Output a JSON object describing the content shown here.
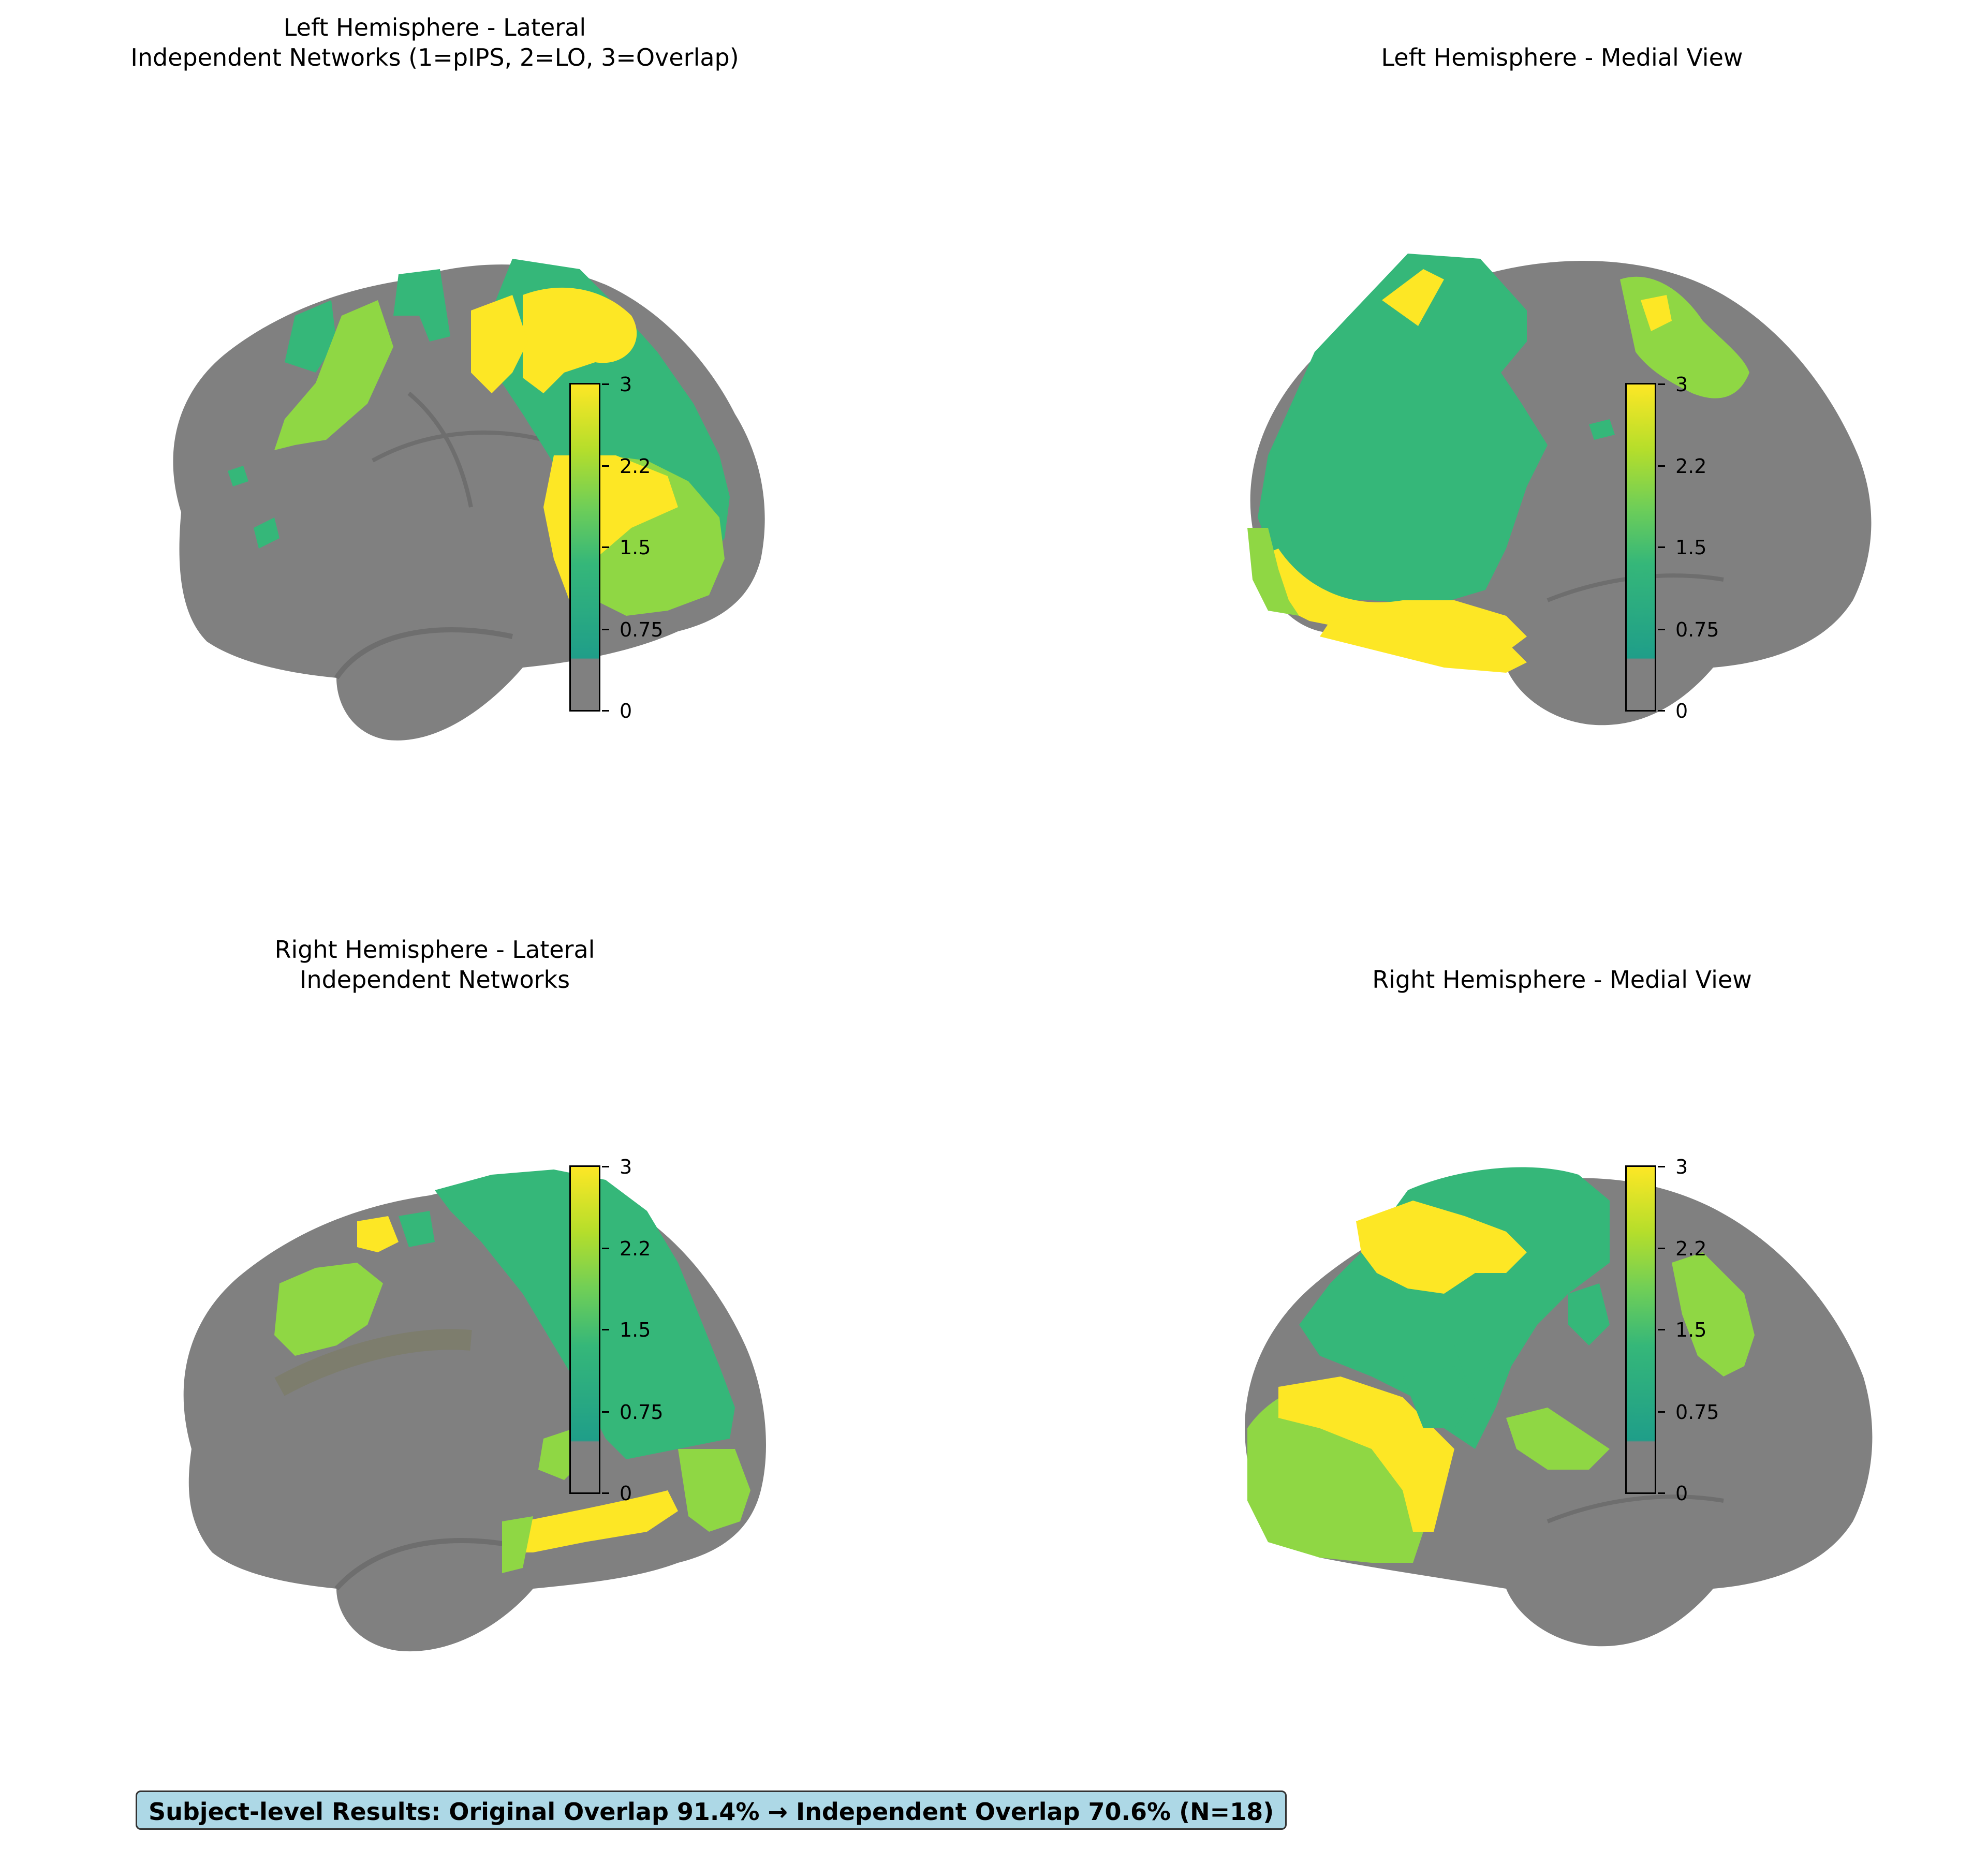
{
  "panels": [
    {
      "id": "lh-lateral",
      "title_line1": "Left Hemisphere - Lateral",
      "title_line2": "Independent Networks (1=pIPS, 2=LO, 3=Overlap)"
    },
    {
      "id": "lh-medial",
      "title_line1": "Left Hemisphere - Medial View",
      "title_line2": ""
    },
    {
      "id": "rh-lateral",
      "title_line1": "Right Hemisphere - Lateral",
      "title_line2": "Independent Networks"
    },
    {
      "id": "rh-medial",
      "title_line1": "Right Hemisphere - Medial View",
      "title_line2": ""
    }
  ],
  "colorbar": {
    "ticks": [
      "3",
      "2.2",
      "1.5",
      "0.75",
      "0"
    ],
    "colors": {
      "zero": "#808080",
      "one": "#35b779",
      "two": "#8fd744",
      "three": "#fde725"
    }
  },
  "summary": "Subject-level Results: Original Overlap 91.4% → Independent Overlap 70.6% (N=18)"
}
